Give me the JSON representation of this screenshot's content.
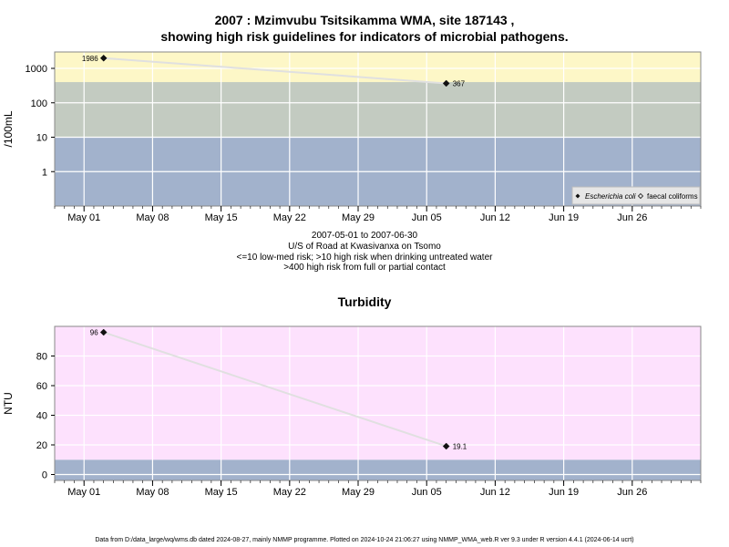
{
  "title_line1": "2007 : Mzimvubu Tsitsikamma WMA, site 187143 ,",
  "title_line2": "showing high risk guidelines for indicators of microbial pathogens.",
  "caption_lines": [
    "2007-05-01 to 2007-06-30",
    "U/S of Road at Kwasivanxa on Tsomo",
    "<=10 low-med risk; >10 high risk when drinking untreated water",
    ">400 high risk from full or partial contact"
  ],
  "turbidity_title": "Turbidity",
  "footer": "Data from D:/data_large/wq/wms.db dated 2024-08-27, mainly NMMP programme. Plotted on 2024-10-24 21:06:27 using NMMP_WMA_web.R ver 9.3 under R version 4.4.1 (2024-06-14 ucrt)",
  "colors": {
    "band_blue": "#a2b2cc",
    "band_green": "#c3cbc1",
    "band_yellow": "#fdf7c7",
    "band_pink": "#fde1fd",
    "grid": "#ffffff",
    "line": "#e0e0e0",
    "frame": "#888888"
  },
  "chart_data": [
    {
      "type": "line",
      "ylabel": "/100mL",
      "yscale": "log",
      "ylim": [
        0.1,
        3000
      ],
      "yticks": [
        1,
        10,
        100,
        1000
      ],
      "ytick_labels": [
        "1",
        "10",
        "100",
        "1000"
      ],
      "xlim": [
        "2007-04-28",
        "2007-07-03"
      ],
      "xticks": [
        "2007-05-01",
        "2007-05-08",
        "2007-05-15",
        "2007-05-22",
        "2007-05-29",
        "2007-06-05",
        "2007-06-12",
        "2007-06-19",
        "2007-06-26"
      ],
      "xtick_labels": [
        "May 01",
        "May 08",
        "May 15",
        "May 22",
        "May 29",
        "Jun 05",
        "Jun 12",
        "Jun 19",
        "Jun 26"
      ],
      "bands": [
        {
          "from": 0.1,
          "to": 10,
          "color": "#a2b2cc"
        },
        {
          "from": 10,
          "to": 400,
          "color": "#c3cbc1"
        },
        {
          "from": 400,
          "to": 3000,
          "color": "#fdf7c7"
        }
      ],
      "series": [
        {
          "name": "Escherichia coli",
          "marker": "filled-diamond",
          "x": [
            "2007-05-03",
            "2007-06-07"
          ],
          "y": [
            1986,
            367
          ],
          "labels": [
            "1986",
            "367"
          ]
        },
        {
          "name": "faecal coliforms",
          "marker": "open-diamond",
          "x": [],
          "y": [],
          "labels": []
        }
      ],
      "legend": "bottom-right",
      "grid": true
    },
    {
      "type": "line",
      "ylabel": "NTU",
      "ylim": [
        -4,
        100
      ],
      "yticks": [
        0,
        20,
        40,
        60,
        80
      ],
      "ytick_labels": [
        "0",
        "20",
        "40",
        "60",
        "80"
      ],
      "xlim": [
        "2007-04-28",
        "2007-07-03"
      ],
      "xticks": [
        "2007-05-01",
        "2007-05-08",
        "2007-05-15",
        "2007-05-22",
        "2007-05-29",
        "2007-06-05",
        "2007-06-12",
        "2007-06-19",
        "2007-06-26"
      ],
      "xtick_labels": [
        "May 01",
        "May 08",
        "May 15",
        "May 22",
        "May 29",
        "Jun 05",
        "Jun 12",
        "Jun 19",
        "Jun 26"
      ],
      "bands": [
        {
          "from": -4,
          "to": 10,
          "color": "#a2b2cc"
        },
        {
          "from": 10,
          "to": 100,
          "color": "#fde1fd"
        }
      ],
      "series": [
        {
          "marker": "filled-diamond",
          "x": [
            "2007-05-03",
            "2007-06-07"
          ],
          "y": [
            96,
            19.1
          ],
          "labels": [
            "96",
            "19.1"
          ]
        }
      ],
      "grid": true
    }
  ]
}
